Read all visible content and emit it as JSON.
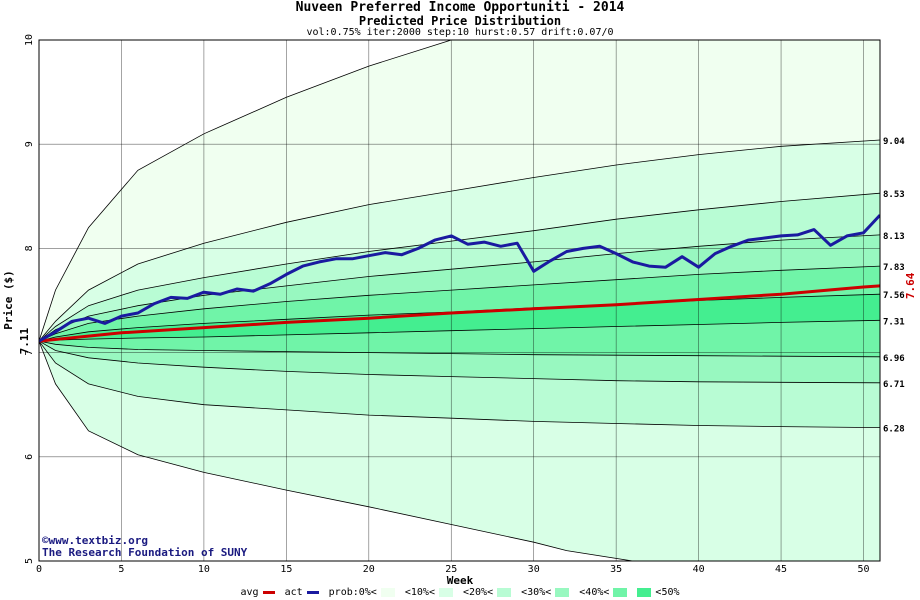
{
  "title": "Nuveen Preferred Income Opportuniti - 2014",
  "subtitle": "Predicted Price Distribution",
  "params": "vol:0.75% iter:2000 step:10 hurst:0.57 drift:0.07/0",
  "credit_line1": "©www.textbiz.org",
  "credit_line2": "The Research Foundation of SUNY",
  "colors": {
    "avg": "#cc0000",
    "act": "#1a1aa0",
    "band_outer": "#f0fff0",
    "band_10": "#d8ffe6",
    "band_20": "#b8fcd4",
    "band_30": "#98f8c0",
    "band_40": "#70f4a8",
    "band_50": "#44ee90"
  },
  "legend": {
    "avg": "avg",
    "act": "act",
    "prob": "prob:0%<",
    "b10": "<10%<",
    "b20": "<20%<",
    "b30": "<30%<",
    "b40": "<40%<",
    "b50": "<50%"
  },
  "chart_data": {
    "type": "line",
    "xlabel": "Week",
    "ylabel": "Price ($)",
    "xlim": [
      0,
      51
    ],
    "ylim": [
      5,
      10
    ],
    "x_ticks": [
      0,
      5,
      10,
      15,
      20,
      25,
      30,
      35,
      40,
      45,
      50
    ],
    "y_ticks": [
      5,
      6,
      7,
      8,
      9,
      10
    ],
    "start_price_label": "7.11",
    "end_avg_label": "7.64",
    "start_price": 7.11,
    "quantile_labels": [
      "9.04",
      "8.53",
      "8.13",
      "7.83",
      "7.56",
      "7.31",
      "6.96",
      "6.71",
      "6.28"
    ],
    "quantile_bounds": [
      {
        "name": "outer-upper",
        "points": [
          [
            0,
            7.11
          ],
          [
            1,
            7.6
          ],
          [
            3,
            8.2
          ],
          [
            6,
            8.75
          ],
          [
            10,
            9.1
          ],
          [
            15,
            9.45
          ],
          [
            20,
            9.75
          ],
          [
            25,
            10.0
          ],
          [
            30,
            10.15
          ],
          [
            35,
            10.3
          ],
          [
            40,
            10.4
          ],
          [
            45,
            10.48
          ],
          [
            51,
            10.55
          ]
        ]
      },
      {
        "name": "q9.04",
        "points": [
          [
            0,
            7.11
          ],
          [
            1,
            7.3
          ],
          [
            3,
            7.6
          ],
          [
            6,
            7.85
          ],
          [
            10,
            8.05
          ],
          [
            15,
            8.25
          ],
          [
            20,
            8.42
          ],
          [
            25,
            8.55
          ],
          [
            30,
            8.68
          ],
          [
            35,
            8.8
          ],
          [
            40,
            8.9
          ],
          [
            45,
            8.98
          ],
          [
            51,
            9.04
          ]
        ]
      },
      {
        "name": "q8.53",
        "points": [
          [
            0,
            7.11
          ],
          [
            1,
            7.25
          ],
          [
            3,
            7.45
          ],
          [
            6,
            7.6
          ],
          [
            10,
            7.72
          ],
          [
            15,
            7.85
          ],
          [
            20,
            7.97
          ],
          [
            25,
            8.07
          ],
          [
            30,
            8.17
          ],
          [
            35,
            8.28
          ],
          [
            40,
            8.37
          ],
          [
            45,
            8.45
          ],
          [
            51,
            8.53
          ]
        ]
      },
      {
        "name": "q8.13",
        "points": [
          [
            0,
            7.11
          ],
          [
            1,
            7.22
          ],
          [
            3,
            7.35
          ],
          [
            6,
            7.45
          ],
          [
            10,
            7.55
          ],
          [
            15,
            7.64
          ],
          [
            20,
            7.73
          ],
          [
            25,
            7.8
          ],
          [
            30,
            7.87
          ],
          [
            35,
            7.95
          ],
          [
            40,
            8.02
          ],
          [
            45,
            8.08
          ],
          [
            51,
            8.13
          ]
        ]
      },
      {
        "name": "q7.83",
        "points": [
          [
            0,
            7.11
          ],
          [
            1,
            7.18
          ],
          [
            3,
            7.28
          ],
          [
            6,
            7.35
          ],
          [
            10,
            7.42
          ],
          [
            15,
            7.49
          ],
          [
            20,
            7.55
          ],
          [
            25,
            7.6
          ],
          [
            30,
            7.65
          ],
          [
            35,
            7.7
          ],
          [
            40,
            7.75
          ],
          [
            45,
            7.79
          ],
          [
            51,
            7.83
          ]
        ]
      },
      {
        "name": "q7.56",
        "points": [
          [
            0,
            7.11
          ],
          [
            1,
            7.15
          ],
          [
            3,
            7.2
          ],
          [
            6,
            7.24
          ],
          [
            10,
            7.28
          ],
          [
            15,
            7.32
          ],
          [
            20,
            7.36
          ],
          [
            25,
            7.39
          ],
          [
            30,
            7.43
          ],
          [
            35,
            7.46
          ],
          [
            40,
            7.5
          ],
          [
            45,
            7.53
          ],
          [
            51,
            7.56
          ]
        ]
      },
      {
        "name": "q7.31",
        "points": [
          [
            0,
            7.11
          ],
          [
            1,
            7.12
          ],
          [
            3,
            7.13
          ],
          [
            6,
            7.14
          ],
          [
            10,
            7.15
          ],
          [
            15,
            7.17
          ],
          [
            20,
            7.19
          ],
          [
            25,
            7.21
          ],
          [
            30,
            7.23
          ],
          [
            35,
            7.25
          ],
          [
            40,
            7.27
          ],
          [
            45,
            7.29
          ],
          [
            51,
            7.31
          ]
        ]
      },
      {
        "name": "q6.96",
        "points": [
          [
            0,
            7.11
          ],
          [
            1,
            7.08
          ],
          [
            3,
            7.05
          ],
          [
            6,
            7.03
          ],
          [
            10,
            7.02
          ],
          [
            15,
            7.01
          ],
          [
            20,
            7.0
          ],
          [
            25,
            6.99
          ],
          [
            30,
            6.98
          ],
          [
            35,
            6.975
          ],
          [
            40,
            6.97
          ],
          [
            45,
            6.965
          ],
          [
            51,
            6.96
          ]
        ]
      },
      {
        "name": "q6.71",
        "points": [
          [
            0,
            7.11
          ],
          [
            1,
            7.02
          ],
          [
            3,
            6.95
          ],
          [
            6,
            6.9
          ],
          [
            10,
            6.86
          ],
          [
            15,
            6.82
          ],
          [
            20,
            6.79
          ],
          [
            25,
            6.77
          ],
          [
            30,
            6.75
          ],
          [
            35,
            6.73
          ],
          [
            40,
            6.72
          ],
          [
            45,
            6.715
          ],
          [
            51,
            6.71
          ]
        ]
      },
      {
        "name": "q6.28",
        "points": [
          [
            0,
            7.11
          ],
          [
            1,
            6.9
          ],
          [
            3,
            6.7
          ],
          [
            6,
            6.58
          ],
          [
            10,
            6.5
          ],
          [
            15,
            6.45
          ],
          [
            20,
            6.4
          ],
          [
            25,
            6.37
          ],
          [
            30,
            6.34
          ],
          [
            35,
            6.32
          ],
          [
            40,
            6.3
          ],
          [
            45,
            6.29
          ],
          [
            51,
            6.28
          ]
        ]
      },
      {
        "name": "outer-lower",
        "points": [
          [
            0,
            7.11
          ],
          [
            1,
            6.7
          ],
          [
            3,
            6.25
          ],
          [
            6,
            6.02
          ],
          [
            10,
            5.85
          ],
          [
            15,
            5.68
          ],
          [
            20,
            5.52
          ],
          [
            25,
            5.35
          ],
          [
            30,
            5.18
          ],
          [
            32,
            5.1
          ],
          [
            40,
            4.9
          ],
          [
            51,
            4.75
          ]
        ]
      }
    ],
    "series": [
      {
        "name": "avg",
        "points": [
          [
            0,
            7.11
          ],
          [
            5,
            7.19
          ],
          [
            10,
            7.24
          ],
          [
            15,
            7.29
          ],
          [
            20,
            7.33
          ],
          [
            25,
            7.38
          ],
          [
            30,
            7.42
          ],
          [
            35,
            7.46
          ],
          [
            40,
            7.51
          ],
          [
            45,
            7.56
          ],
          [
            50,
            7.63
          ],
          [
            51,
            7.64
          ]
        ]
      },
      {
        "name": "act",
        "points": [
          [
            0,
            7.11
          ],
          [
            1,
            7.2
          ],
          [
            2,
            7.3
          ],
          [
            3,
            7.33
          ],
          [
            4,
            7.28
          ],
          [
            5,
            7.35
          ],
          [
            6,
            7.38
          ],
          [
            7,
            7.47
          ],
          [
            8,
            7.53
          ],
          [
            9,
            7.52
          ],
          [
            10,
            7.58
          ],
          [
            11,
            7.56
          ],
          [
            12,
            7.61
          ],
          [
            13,
            7.59
          ],
          [
            14,
            7.66
          ],
          [
            15,
            7.75
          ],
          [
            16,
            7.83
          ],
          [
            17,
            7.87
          ],
          [
            18,
            7.9
          ],
          [
            19,
            7.9
          ],
          [
            20,
            7.93
          ],
          [
            21,
            7.96
          ],
          [
            22,
            7.94
          ],
          [
            23,
            8.0
          ],
          [
            24,
            8.08
          ],
          [
            25,
            8.12
          ],
          [
            26,
            8.04
          ],
          [
            27,
            8.06
          ],
          [
            28,
            8.02
          ],
          [
            29,
            8.05
          ],
          [
            30,
            7.78
          ],
          [
            31,
            7.88
          ],
          [
            32,
            7.97
          ],
          [
            33,
            8.0
          ],
          [
            34,
            8.02
          ],
          [
            35,
            7.95
          ],
          [
            36,
            7.87
          ],
          [
            37,
            7.83
          ],
          [
            38,
            7.82
          ],
          [
            39,
            7.92
          ],
          [
            40,
            7.82
          ],
          [
            41,
            7.95
          ],
          [
            42,
            8.02
          ],
          [
            43,
            8.08
          ],
          [
            44,
            8.1
          ],
          [
            45,
            8.12
          ],
          [
            46,
            8.13
          ],
          [
            47,
            8.18
          ],
          [
            48,
            8.03
          ],
          [
            49,
            8.12
          ],
          [
            50,
            8.15
          ],
          [
            51,
            8.32
          ]
        ]
      }
    ]
  }
}
